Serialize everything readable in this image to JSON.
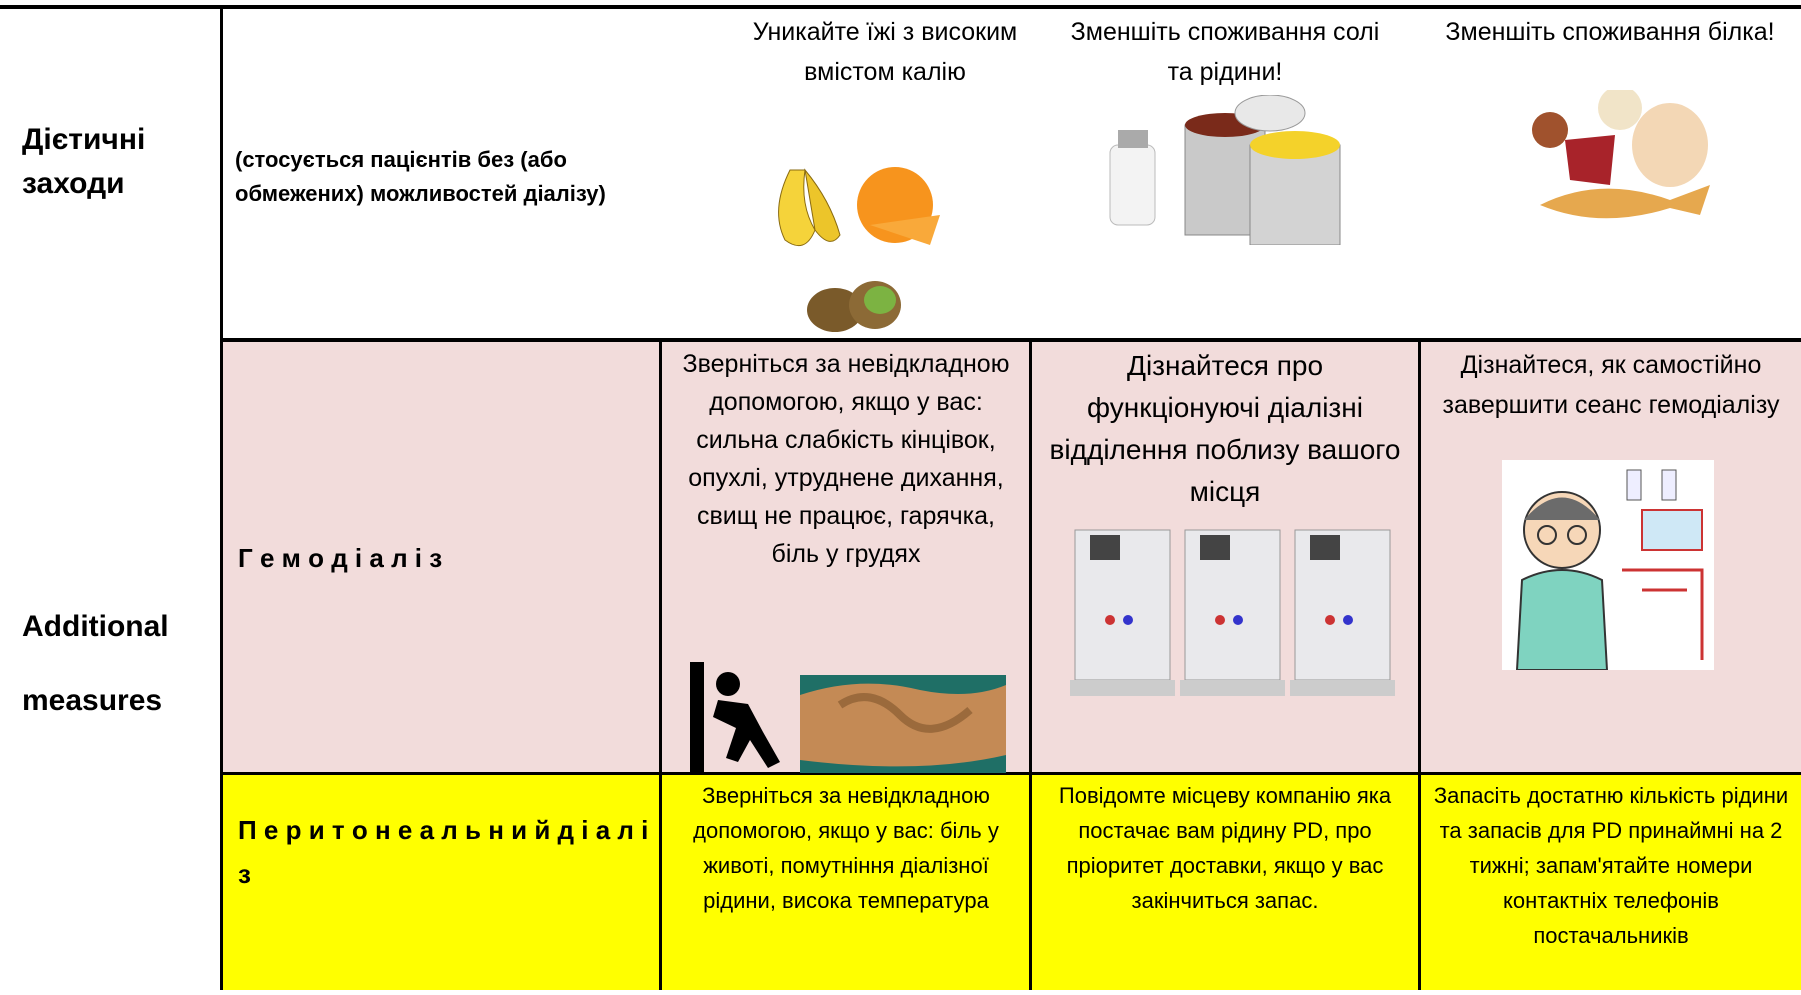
{
  "diet": {
    "label": "Дієтичні заходи",
    "note": "(стосується пацієнтів без (або обмежених) можливостей діалізу)",
    "items": [
      "Уникайте їжі з високим вмістом калію",
      "Зменшіть споживання солі та рідини!",
      "Зменшіть споживання білка!"
    ]
  },
  "additional": {
    "label": "Additional measures",
    "rows": [
      {
        "name": "Г е м о д і а л і з",
        "cells": [
          "Зверніться за невідкладною допомогою, якщо у вас: сильна слабкість кінцівок, опухлі, утруднене дихання, свищ не працює, гарячка, біль у грудях",
          "Дізнайтеся про функціонуючі діалізні відділення поблизу вашого місця",
          "Дізнайтеся, як самостійно завершити сеанс гемодіалізу"
        ]
      },
      {
        "name": "П е р и т о н е а л ь н и й д і а л і з",
        "cells": [
          "Зверніться за невідкладною допомогою, якщо у вас: біль у животі, помутніння діалізної рідини, висока температура",
          "Повідомте місцеву компанію яка постачає вам рідину PD, про пріоритет доставки, якщо у вас закінчиться запас.",
          "Запасіть достатню кількість рідини та запасів для PD принаймні на 2 тижні; запам'ятайте номери контактніх телефонів постачальників"
        ]
      }
    ]
  }
}
